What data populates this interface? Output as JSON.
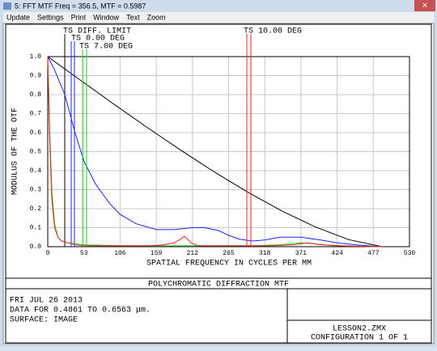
{
  "window": {
    "title": "5: FFT MTF Freq = 356.5, MTF = 0.5987",
    "menu": [
      "Update",
      "Settings",
      "Print",
      "Window",
      "Text",
      "Zoom"
    ]
  },
  "chart_data": {
    "type": "line",
    "xlabel": "SPATIAL FREQUENCY IN CYCLES PER MM",
    "ylabel": "MODULUS OF THE OTF",
    "xlim": [
      0,
      530
    ],
    "xticks": [
      0,
      53,
      106,
      159,
      212,
      265,
      318,
      371,
      424,
      477,
      530
    ],
    "ylim": [
      0,
      1
    ],
    "yticks": [
      {
        "value": 0,
        "label": "0.0"
      },
      0.1,
      0.2,
      0.3,
      0.4,
      0.5,
      0.6,
      0.7,
      0.8,
      0.9,
      {
        "value": 1,
        "label": "1.0"
      }
    ],
    "grid": true,
    "series": [
      {
        "name": "TS DIFF. LIMIT",
        "color": "#000000",
        "x": [
          0,
          49,
          98,
          147,
          196,
          245,
          294,
          343,
          392,
          441,
          490
        ],
        "values": [
          1.0,
          0.873,
          0.747,
          0.624,
          0.505,
          0.391,
          0.285,
          0.188,
          0.104,
          0.037,
          0
        ]
      },
      {
        "name": "TS 0.00 DEG",
        "color": "#2020ff",
        "x": [
          0,
          10,
          25,
          40,
          53,
          70,
          90,
          106,
          130,
          159,
          185,
          212,
          230,
          250,
          265,
          280,
          300,
          318,
          340,
          371,
          400,
          424,
          450,
          477,
          490
        ],
        "values": [
          1.0,
          0.93,
          0.8,
          0.6,
          0.45,
          0.33,
          0.23,
          0.17,
          0.12,
          0.09,
          0.09,
          0.1,
          0.1,
          0.085,
          0.06,
          0.04,
          0.03,
          0.035,
          0.05,
          0.05,
          0.035,
          0.02,
          0.01,
          0.003,
          0
        ]
      },
      {
        "name": "TS 7.00 DEG",
        "color": "#22cc22",
        "x": [
          0,
          3,
          6,
          10,
          15,
          20,
          30,
          53,
          106,
          212,
          300,
          340,
          371,
          390,
          420,
          460,
          490
        ],
        "values": [
          1.0,
          0.6,
          0.3,
          0.12,
          0.05,
          0.03,
          0.02,
          0.01,
          0.005,
          0.005,
          0.005,
          0.01,
          0.02,
          0.015,
          0.005,
          0.002,
          0
        ]
      },
      {
        "name": "TS 10.00 DEG",
        "color": "#ee2020",
        "x": [
          0,
          3,
          6,
          10,
          15,
          20,
          30,
          40,
          53,
          80,
          106,
          150,
          170,
          185,
          195,
          200,
          205,
          210,
          220,
          240,
          265,
          300,
          330,
          360,
          380,
          400,
          430,
          460,
          490
        ],
        "values": [
          1.0,
          0.55,
          0.25,
          0.1,
          0.05,
          0.03,
          0.02,
          0.01,
          0.005,
          0.005,
          0.005,
          0.005,
          0.01,
          0.02,
          0.04,
          0.055,
          0.04,
          0.02,
          0.005,
          0.005,
          0.005,
          0.005,
          0.005,
          0.01,
          0.02,
          0.01,
          0.005,
          0.002,
          0
        ]
      }
    ]
  },
  "footer": {
    "title": "POLYCHROMATIC DIFFRACTION MTF",
    "lines": [
      "FRI JUL 26 2013",
      "DATA FOR 0.4861 TO 0.6563 μm.",
      "SURFACE: IMAGE"
    ],
    "file": "LESSON2.ZMX",
    "config": "CONFIGURATION 1 OF 1"
  }
}
